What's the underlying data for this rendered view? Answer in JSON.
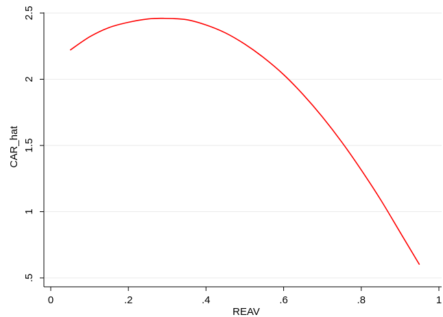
{
  "chart_data": {
    "type": "line",
    "xlabel": "REAV",
    "ylabel": "CAR_hat",
    "xlim": [
      0,
      1
    ],
    "ylim": [
      0.5,
      2.5
    ],
    "x_ticks": [
      {
        "value": 0,
        "label": "0"
      },
      {
        "value": 0.2,
        "label": ".2"
      },
      {
        "value": 0.4,
        "label": ".4"
      },
      {
        "value": 0.6,
        "label": ".6"
      },
      {
        "value": 0.8,
        "label": ".8"
      },
      {
        "value": 1,
        "label": "1"
      }
    ],
    "y_ticks": [
      {
        "value": 0.5,
        "label": ".5"
      },
      {
        "value": 1,
        "label": "1"
      },
      {
        "value": 1.5,
        "label": "1.5"
      },
      {
        "value": 2,
        "label": "2"
      },
      {
        "value": 2.5,
        "label": "2.5"
      }
    ],
    "grid": true,
    "series": [
      {
        "color": "#ff0000",
        "x": [
          0.05,
          0.1,
          0.15,
          0.2,
          0.25,
          0.29,
          0.35,
          0.4,
          0.45,
          0.5,
          0.55,
          0.6,
          0.65,
          0.7,
          0.75,
          0.8,
          0.85,
          0.9,
          0.95
        ],
        "y": [
          2.22,
          2.32,
          2.39,
          2.43,
          2.455,
          2.46,
          2.45,
          2.41,
          2.35,
          2.265,
          2.16,
          2.035,
          1.885,
          1.715,
          1.525,
          1.315,
          1.09,
          0.845,
          0.6
        ]
      }
    ]
  }
}
